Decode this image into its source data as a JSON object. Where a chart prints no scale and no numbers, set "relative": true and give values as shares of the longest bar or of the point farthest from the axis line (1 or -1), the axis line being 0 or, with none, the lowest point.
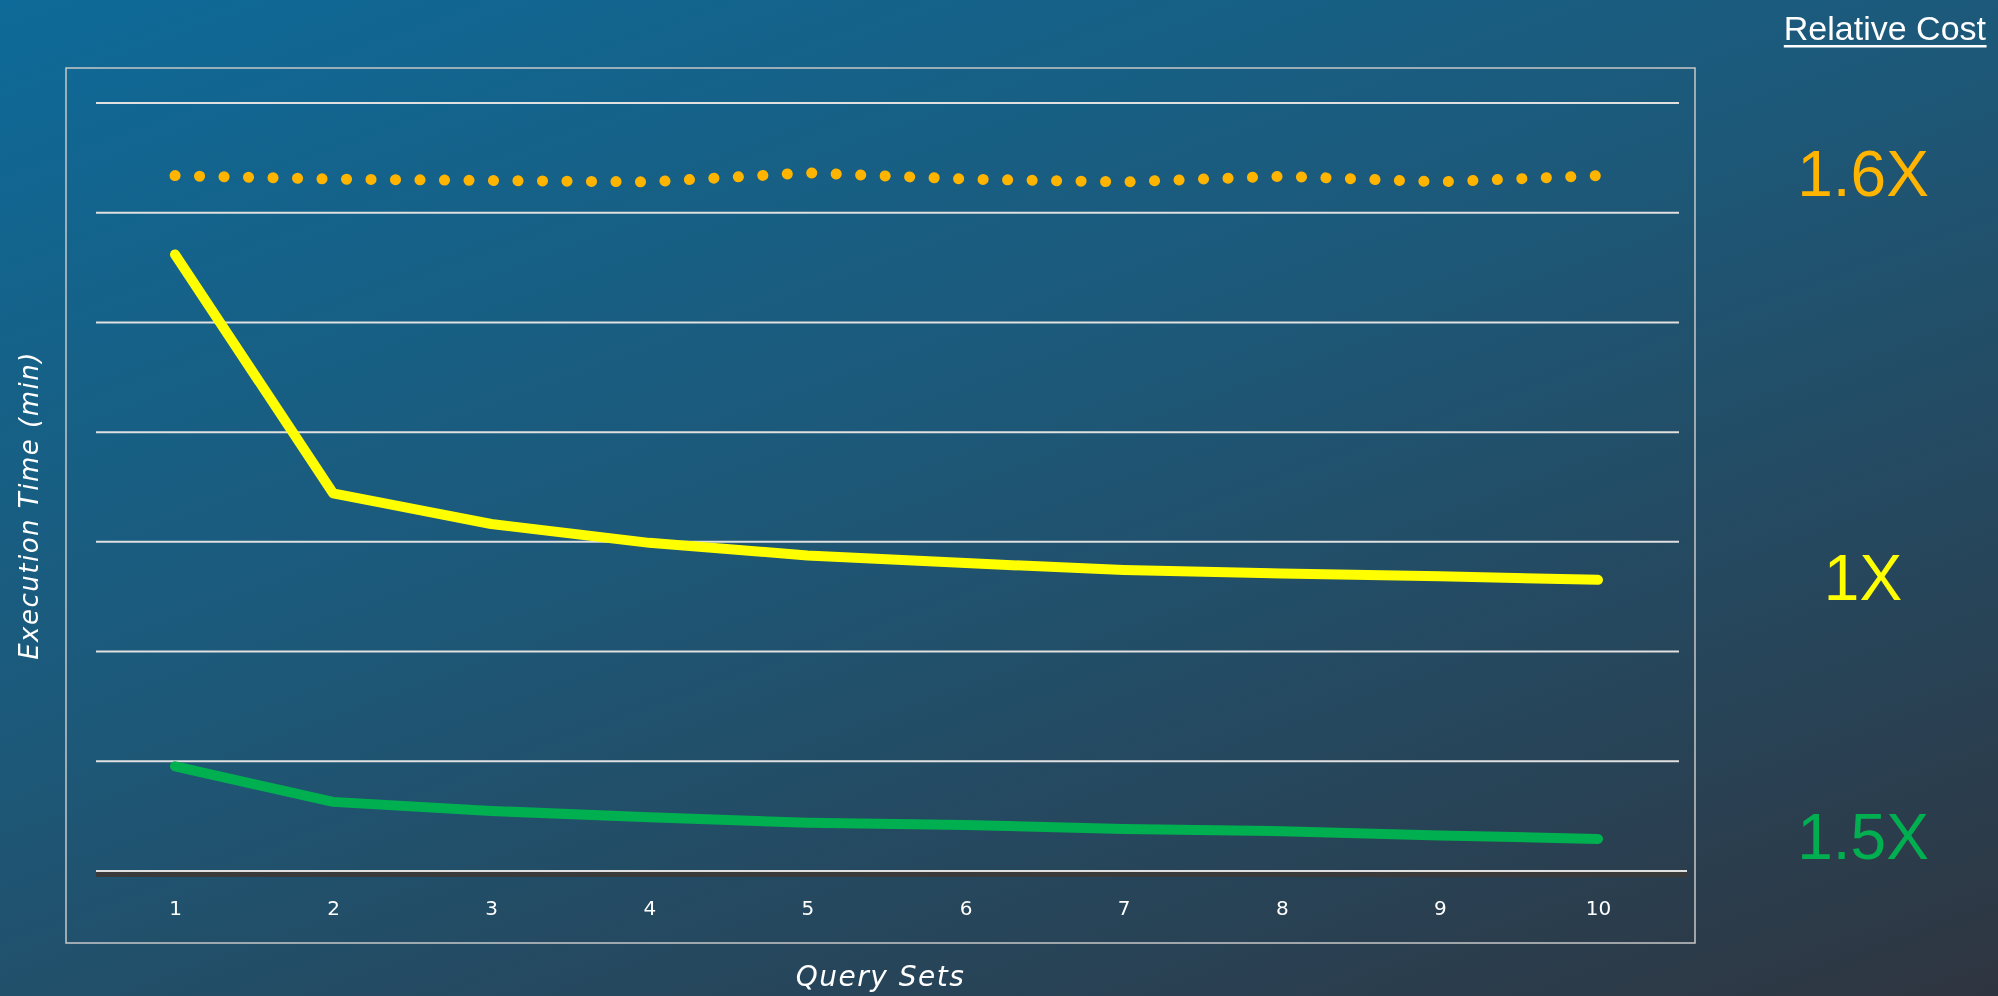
{
  "chart_data": {
    "type": "line",
    "relative": true,
    "xlabel": "Query Sets",
    "ylabel": "Execution Time (min)",
    "legend_title": "Relative Cost",
    "legend": "right",
    "grid": "y",
    "marker": "none",
    "categories": [
      "1",
      "2",
      "3",
      "4",
      "5",
      "6",
      "7",
      "8",
      "9",
      "10"
    ],
    "series": [
      {
        "name": "1.6X",
        "color": "#ffb400",
        "line_style": "dotted",
        "values": [
          0.996,
          0.991,
          0.989,
          0.987,
          1,
          0.991,
          0.987,
          0.995,
          0.987,
          0.996
        ]
      },
      {
        "name": "1X",
        "color": "#ffff00",
        "line_style": "solid",
        "values": [
          0.883,
          0.541,
          0.497,
          0.47,
          0.452,
          0.441,
          0.431,
          0.426,
          0.422,
          0.417
        ]
      },
      {
        "name": "1.5X",
        "color": "#00b050",
        "line_style": "solid",
        "values": [
          0.15,
          0.099,
          0.086,
          0.077,
          0.069,
          0.066,
          0.06,
          0.057,
          0.051,
          0.046
        ]
      }
    ]
  }
}
